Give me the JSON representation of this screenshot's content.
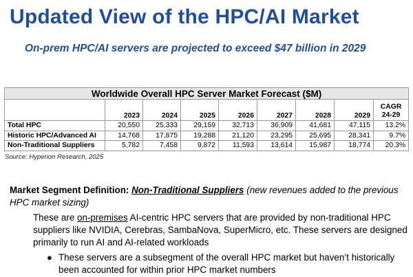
{
  "title": "Updated View of the HPC/AI Market",
  "subtitle": "On-prem HPC/AI servers are projected to exceed $47 billion in 2029",
  "table": {
    "caption": "Worldwide Overall HPC Server Market Forecast ($M)",
    "columns": [
      "2023",
      "2024",
      "2025",
      "2026",
      "2027",
      "2028",
      "2029"
    ],
    "cagr_header_line1": "CAGR",
    "cagr_header_line2": "24-29",
    "rows": [
      {
        "label": "Total HPC",
        "values": [
          "20,550",
          "25,333",
          "29,159",
          "32,713",
          "36,909",
          "41,681",
          "47,115"
        ],
        "cagr": "13.2%"
      },
      {
        "label": "Historic HPC/Advanced AI",
        "values": [
          "14,768",
          "17,875",
          "19,288",
          "21,120",
          "23,295",
          "25,695",
          "28,341"
        ],
        "cagr": "9.7%"
      },
      {
        "label": "Non-Traditional Suppliers",
        "values": [
          "5,782",
          "7,458",
          "9,872",
          "11,593",
          "13,614",
          "15,987",
          "18,774"
        ],
        "cagr": "20.3%"
      }
    ],
    "source": "Source: Hyperion Research, 2025"
  },
  "definition": {
    "lead": "Market Segment Definition: ",
    "segment": "Non-Traditional Suppliers",
    "note": " (new revenues added to the previous HPC market sizing)",
    "body_pre": "These are ",
    "body_underlined": "on-premises",
    "body_post": " AI-centric HPC servers that are provided by non-traditional HPC suppliers like NVIDIA, Cerebras, SambaNova, SuperMicro, etc. These servers are designed primarily to run AI and AI-related workloads",
    "bullet": "These servers are a subsegment of the overall HPC market but haven’t historically been accounted for within prior HPC market numbers"
  }
}
